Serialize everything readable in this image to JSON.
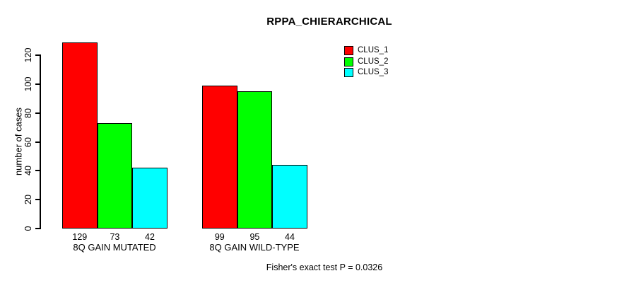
{
  "title": "RPPA_CHIERARCHICAL",
  "chart_data": {
    "type": "bar",
    "title": "RPPA_CHIERARCHICAL",
    "categories": [
      "8Q GAIN MUTATED",
      "8Q GAIN WILD-TYPE"
    ],
    "series": [
      {
        "name": "CLUS_1",
        "color": "#ff0000",
        "values": [
          129,
          99
        ]
      },
      {
        "name": "CLUS_2",
        "color": "#00ff00",
        "values": [
          73,
          95
        ]
      },
      {
        "name": "CLUS_3",
        "color": "#00ffff",
        "values": [
          42,
          44
        ]
      }
    ],
    "xlabel": "",
    "ylabel": "number of cases",
    "yticks": [
      0,
      20,
      40,
      60,
      80,
      100,
      120
    ],
    "ylim": [
      0,
      130
    ],
    "grid": false,
    "legend_position": "top-right",
    "bar_value_labels": [
      [
        "129",
        "73",
        "42"
      ],
      [
        "99",
        "95",
        "44"
      ]
    ]
  },
  "annotation": "Fisher's exact test P = 0.0326",
  "colors": {
    "background": "#ffffff",
    "axis": "#000000",
    "text": "#000000",
    "bar_border": "#000000"
  }
}
